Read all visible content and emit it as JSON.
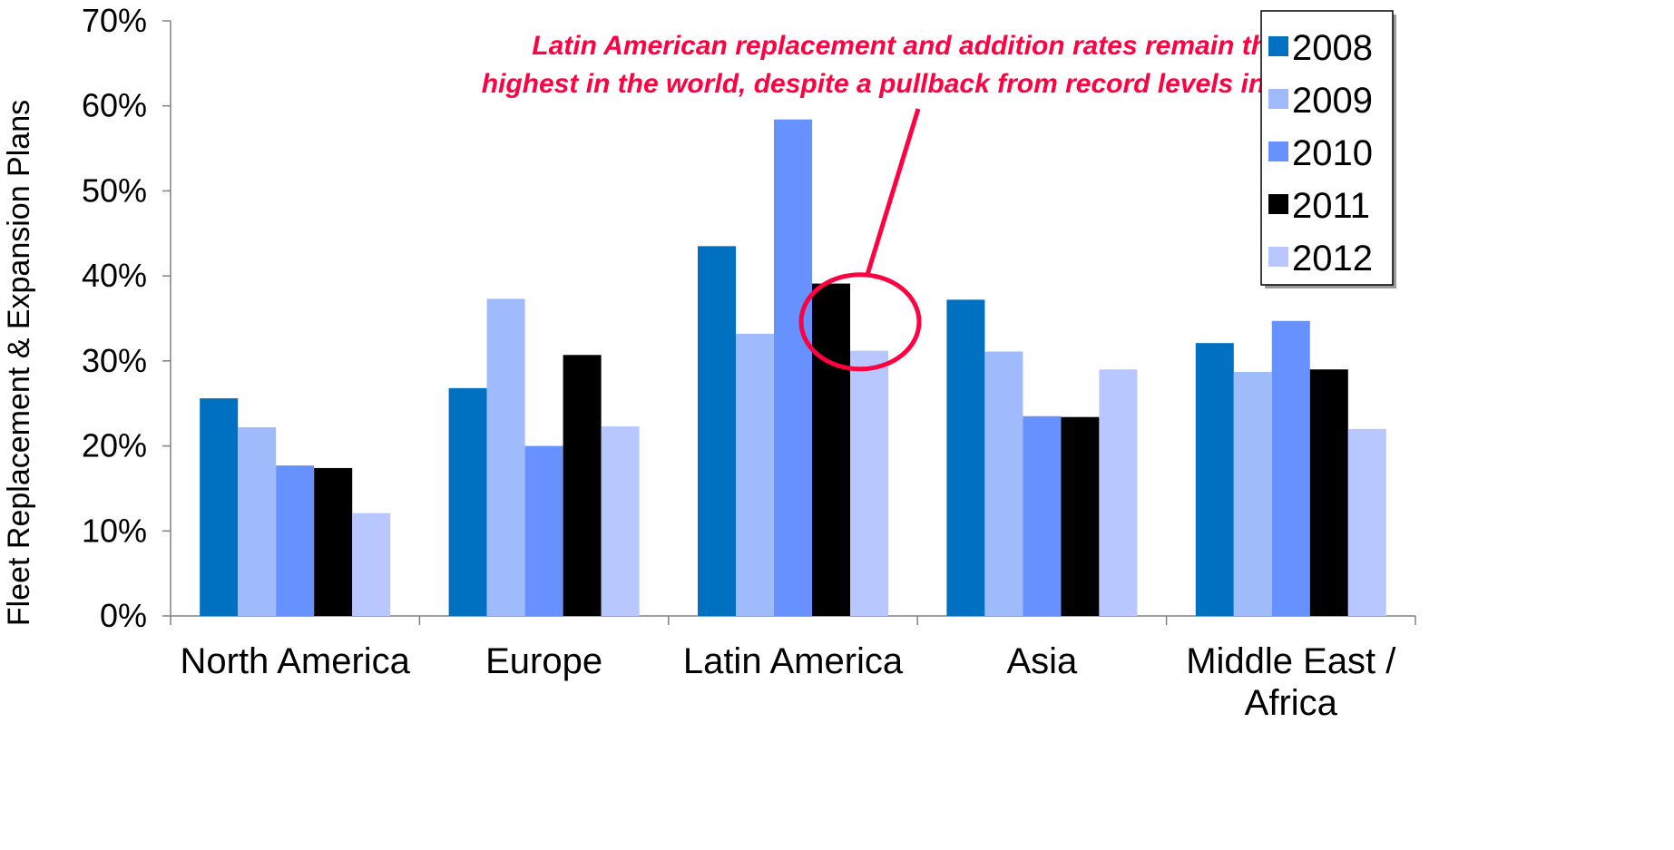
{
  "chart_data": {
    "type": "bar",
    "title": "",
    "xlabel": "",
    "ylabel": "Fleet Replacement & Expansion Plans",
    "ylim": [
      0,
      70
    ],
    "y_tick_labels": [
      "0%",
      "10%",
      "20%",
      "30%",
      "40%",
      "50%",
      "60%",
      "70%"
    ],
    "y_ticks": [
      0,
      10,
      20,
      30,
      40,
      50,
      60,
      70
    ],
    "categories": [
      "North America",
      "Europe",
      "Latin America",
      "Asia",
      "Middle East / Africa"
    ],
    "category_lines": [
      [
        "North America"
      ],
      [
        "Europe"
      ],
      [
        "Latin America"
      ],
      [
        "Asia"
      ],
      [
        "Middle East /",
        "Africa"
      ]
    ],
    "series": [
      {
        "name": "2008",
        "color": "#0070c0",
        "values": [
          25.6,
          26.8,
          43.5,
          37.2,
          32.1
        ]
      },
      {
        "name": "2009",
        "color": "#9fbbfb",
        "values": [
          22.2,
          37.3,
          33.2,
          31.1,
          28.7
        ]
      },
      {
        "name": "2010",
        "color": "#6691ff",
        "values": [
          17.7,
          20.0,
          58.4,
          23.5,
          34.7
        ]
      },
      {
        "name": "2011",
        "color": "#000000",
        "values": [
          17.4,
          30.7,
          39.1,
          23.4,
          29.0
        ]
      },
      {
        "name": "2012",
        "color": "#b8c7ff",
        "values": [
          12.1,
          22.3,
          31.2,
          29.0,
          22.0
        ]
      }
    ],
    "legend_position": "top-right",
    "grid": false,
    "annotation": {
      "lines": [
        "Latin American replacement and addition rates remain the",
        "highest in the world, despite a pullback from record levels in 2010"
      ],
      "color": "#ff0040",
      "target_category": "Latin America",
      "target_series": "2012"
    }
  }
}
